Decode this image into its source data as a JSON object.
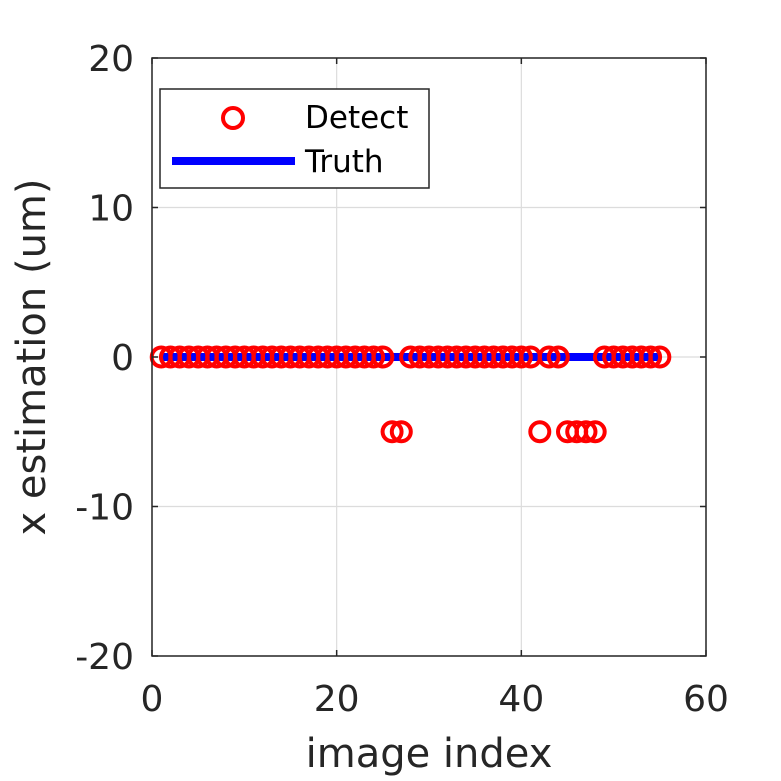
{
  "chart_data": {
    "type": "scatter",
    "title": "",
    "xlabel": "image index",
    "ylabel": "x estimation (um)",
    "xlim": [
      0,
      60
    ],
    "ylim": [
      -20,
      20
    ],
    "xticks": [
      "0",
      "20",
      "40",
      "60"
    ],
    "yticks": [
      "-20",
      "-10",
      "0",
      "10",
      "20"
    ],
    "grid": true,
    "legend_position": "top-left",
    "legend": [
      "Detect",
      "Truth"
    ],
    "colors": {
      "detect": "#ff0000",
      "truth": "#0000ff"
    },
    "series": [
      {
        "name": "Detect",
        "kind": "markers",
        "marker": "circle",
        "points": [
          [
            1,
            0
          ],
          [
            2,
            0
          ],
          [
            3,
            0
          ],
          [
            4,
            0
          ],
          [
            5,
            0
          ],
          [
            6,
            0
          ],
          [
            7,
            0
          ],
          [
            8,
            0
          ],
          [
            9,
            0
          ],
          [
            10,
            0
          ],
          [
            11,
            0
          ],
          [
            12,
            0
          ],
          [
            13,
            0
          ],
          [
            14,
            0
          ],
          [
            15,
            0
          ],
          [
            16,
            0
          ],
          [
            17,
            0
          ],
          [
            18,
            0
          ],
          [
            19,
            0
          ],
          [
            20,
            0
          ],
          [
            21,
            0
          ],
          [
            22,
            0
          ],
          [
            23,
            0
          ],
          [
            24,
            0
          ],
          [
            25,
            0
          ],
          [
            26,
            -5
          ],
          [
            27,
            -5
          ],
          [
            28,
            0
          ],
          [
            29,
            0
          ],
          [
            30,
            0
          ],
          [
            31,
            0
          ],
          [
            32,
            0
          ],
          [
            33,
            0
          ],
          [
            34,
            0
          ],
          [
            35,
            0
          ],
          [
            36,
            0
          ],
          [
            37,
            0
          ],
          [
            38,
            0
          ],
          [
            39,
            0
          ],
          [
            40,
            0
          ],
          [
            41,
            0
          ],
          [
            42,
            -5
          ],
          [
            43,
            0
          ],
          [
            44,
            0
          ],
          [
            45,
            -5
          ],
          [
            46,
            -5
          ],
          [
            47,
            -5
          ],
          [
            48,
            -5
          ],
          [
            49,
            0
          ],
          [
            50,
            0
          ],
          [
            51,
            0
          ],
          [
            52,
            0
          ],
          [
            53,
            0
          ],
          [
            54,
            0
          ],
          [
            55,
            0
          ]
        ]
      },
      {
        "name": "Truth",
        "kind": "line",
        "points": [
          [
            1,
            0
          ],
          [
            55,
            0
          ]
        ]
      }
    ]
  }
}
